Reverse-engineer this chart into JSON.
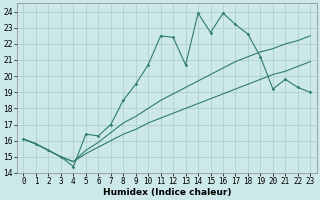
{
  "title": "",
  "xlabel": "Humidex (Indice chaleur)",
  "xlim": [
    -0.5,
    23.5
  ],
  "ylim": [
    14,
    24.5
  ],
  "xticks": [
    0,
    1,
    2,
    3,
    4,
    5,
    6,
    7,
    8,
    9,
    10,
    11,
    12,
    13,
    14,
    15,
    16,
    17,
    18,
    19,
    20,
    21,
    22,
    23
  ],
  "yticks": [
    14,
    15,
    16,
    17,
    18,
    19,
    20,
    21,
    22,
    23,
    24
  ],
  "bg_color": "#cce8e8",
  "line_color": "#2e7d6d",
  "grid_color": "#aacccc",
  "line1_x": [
    0,
    1,
    2,
    3,
    4,
    5,
    6,
    7,
    8,
    9,
    10,
    11,
    12,
    13,
    14,
    15,
    16,
    17,
    18,
    19,
    20,
    21,
    22,
    23
  ],
  "line1_y": [
    16.1,
    15.8,
    15.4,
    15.0,
    14.4,
    16.4,
    16.3,
    17.0,
    18.5,
    19.5,
    20.7,
    22.5,
    22.4,
    20.7,
    23.9,
    22.7,
    23.9,
    23.2,
    22.6,
    21.2,
    19.2,
    19.8,
    19.3,
    19.0
  ],
  "line2_x": [
    0,
    1,
    2,
    3,
    4,
    5,
    6,
    7,
    8,
    9,
    10,
    11,
    12,
    13,
    14,
    15,
    16,
    17,
    18,
    19,
    20,
    21,
    22,
    23
  ],
  "line2_y": [
    16.1,
    15.8,
    15.4,
    15.0,
    14.7,
    15.4,
    15.9,
    16.5,
    17.1,
    17.5,
    18.0,
    18.5,
    18.9,
    19.3,
    19.7,
    20.1,
    20.5,
    20.9,
    21.2,
    21.5,
    21.7,
    22.0,
    22.2,
    22.5
  ],
  "line3_x": [
    0,
    1,
    2,
    3,
    4,
    5,
    6,
    7,
    8,
    9,
    10,
    11,
    12,
    13,
    14,
    15,
    16,
    17,
    18,
    19,
    20,
    21,
    22,
    23
  ],
  "line3_y": [
    16.1,
    15.8,
    15.4,
    15.0,
    14.7,
    15.2,
    15.6,
    16.0,
    16.4,
    16.7,
    17.1,
    17.4,
    17.7,
    18.0,
    18.3,
    18.6,
    18.9,
    19.2,
    19.5,
    19.8,
    20.1,
    20.3,
    20.6,
    20.9
  ],
  "xlabel_fontsize": 6.5,
  "tick_fontsize": 5.5
}
